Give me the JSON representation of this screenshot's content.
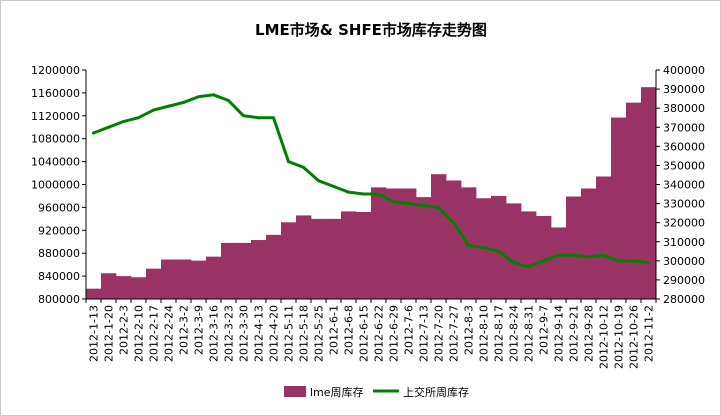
{
  "chart_data": {
    "type": "bar+line",
    "title": "LME市场& SHFE市场库存走势图",
    "categories": [
      "2012-1-13",
      "2012-1-20",
      "2012-2-3",
      "2012-2-10",
      "2012-2-17",
      "2012-2-24",
      "2012-3-2",
      "2012-3-9",
      "2012-3-16",
      "2012-3-23",
      "2012-3-30",
      "2012-4-13",
      "2012-4-20",
      "2012-5-11",
      "2012-5-18",
      "2012-5-25",
      "2012-6-1",
      "2012-6-8",
      "2012-6-15",
      "2012-6-22",
      "2012-6-29",
      "2012-7-6",
      "2012-7-13",
      "2012-7-20",
      "2012-7-27",
      "2012-8-3",
      "2012-8-10",
      "2012-8-17",
      "2012-8-24",
      "2012-8-31",
      "2012-9-7",
      "2012-9-14",
      "2012-9-21",
      "2012-9-28",
      "2012-10-12",
      "2012-10-19",
      "2012-10-26",
      "2012-11-2"
    ],
    "series": [
      {
        "name": "lme周库存",
        "type": "bar",
        "axis": "left",
        "color": "#993366",
        "values": [
          818000,
          845000,
          840000,
          838000,
          853000,
          869000,
          869000,
          867000,
          874000,
          898000,
          898000,
          903000,
          912000,
          934000,
          946000,
          940000,
          940000,
          953000,
          952000,
          995000,
          993000,
          993000,
          978000,
          1018000,
          1007000,
          995000,
          976000,
          980000,
          967000,
          953000,
          945000,
          925000,
          979000,
          993000,
          1014000,
          1117000,
          1143000,
          1170000
        ]
      },
      {
        "name": "上交所周库存",
        "type": "line",
        "axis": "right",
        "color": "#008000",
        "values": [
          367000,
          370000,
          373000,
          375000,
          379000,
          381000,
          383000,
          386000,
          387000,
          384000,
          376000,
          375000,
          375000,
          352000,
          349000,
          342000,
          339000,
          336000,
          335000,
          335000,
          331000,
          330000,
          329000,
          328000,
          320000,
          308000,
          307000,
          305000,
          299000,
          297000,
          300000,
          303000,
          303000,
          302000,
          303000,
          300000,
          300000,
          299000
        ]
      }
    ],
    "y_left": {
      "min": 800000,
      "max": 1200000,
      "step": 40000,
      "tick_labels": [
        "800000",
        "840000",
        "880000",
        "920000",
        "960000",
        "1000000",
        "1040000",
        "1080000",
        "1120000",
        "1160000",
        "1200000"
      ]
    },
    "y_right": {
      "min": 280000,
      "max": 400000,
      "step": 10000,
      "tick_labels": [
        "280000",
        "290000",
        "300000",
        "310000",
        "320000",
        "330000",
        "340000",
        "350000",
        "360000",
        "370000",
        "380000",
        "390000",
        "400000"
      ]
    },
    "legend": {
      "position": "bottom",
      "items": [
        "lme周库存",
        "上交所周库存"
      ]
    }
  }
}
